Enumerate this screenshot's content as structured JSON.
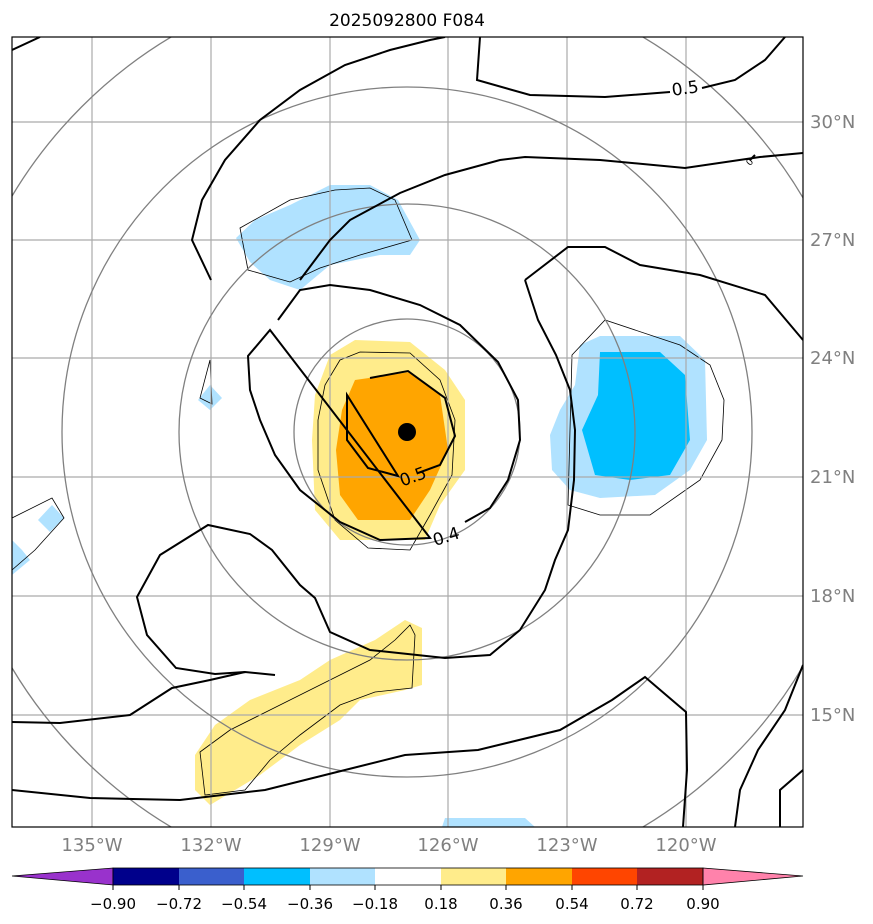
{
  "title": "2025092800 F084",
  "longitude_labels": [
    "135°W",
    "132°W",
    "129°W",
    "126°W",
    "123°W",
    "120°W"
  ],
  "latitude_labels": [
    "30°N",
    "27°N",
    "24°N",
    "21°N",
    "18°N",
    "15°N"
  ],
  "contour_labels": {
    "top_right": "0.5",
    "center_inner": "0.5",
    "center_outer": "0.4",
    "small_tick": "0"
  },
  "colorbar": {
    "ticks": [
      "−0.90",
      "−0.72",
      "−0.54",
      "−0.36",
      "−0.18",
      "0.18",
      "0.36",
      "0.54",
      "0.72",
      "0.90"
    ],
    "colors": [
      "#9932cc",
      "#00008b",
      "#3a5fcd",
      "#00bfff",
      "#b0e2ff",
      "#ffffff",
      "#ffec8b",
      "#ffa500",
      "#ff4500",
      "#b22222",
      "#ff82ab"
    ]
  },
  "colors": {
    "grid": "#aaaaaa",
    "range_rings": "#808080",
    "contour": "#000000",
    "axis_label": "#808080",
    "storm_center": "#000000"
  }
}
